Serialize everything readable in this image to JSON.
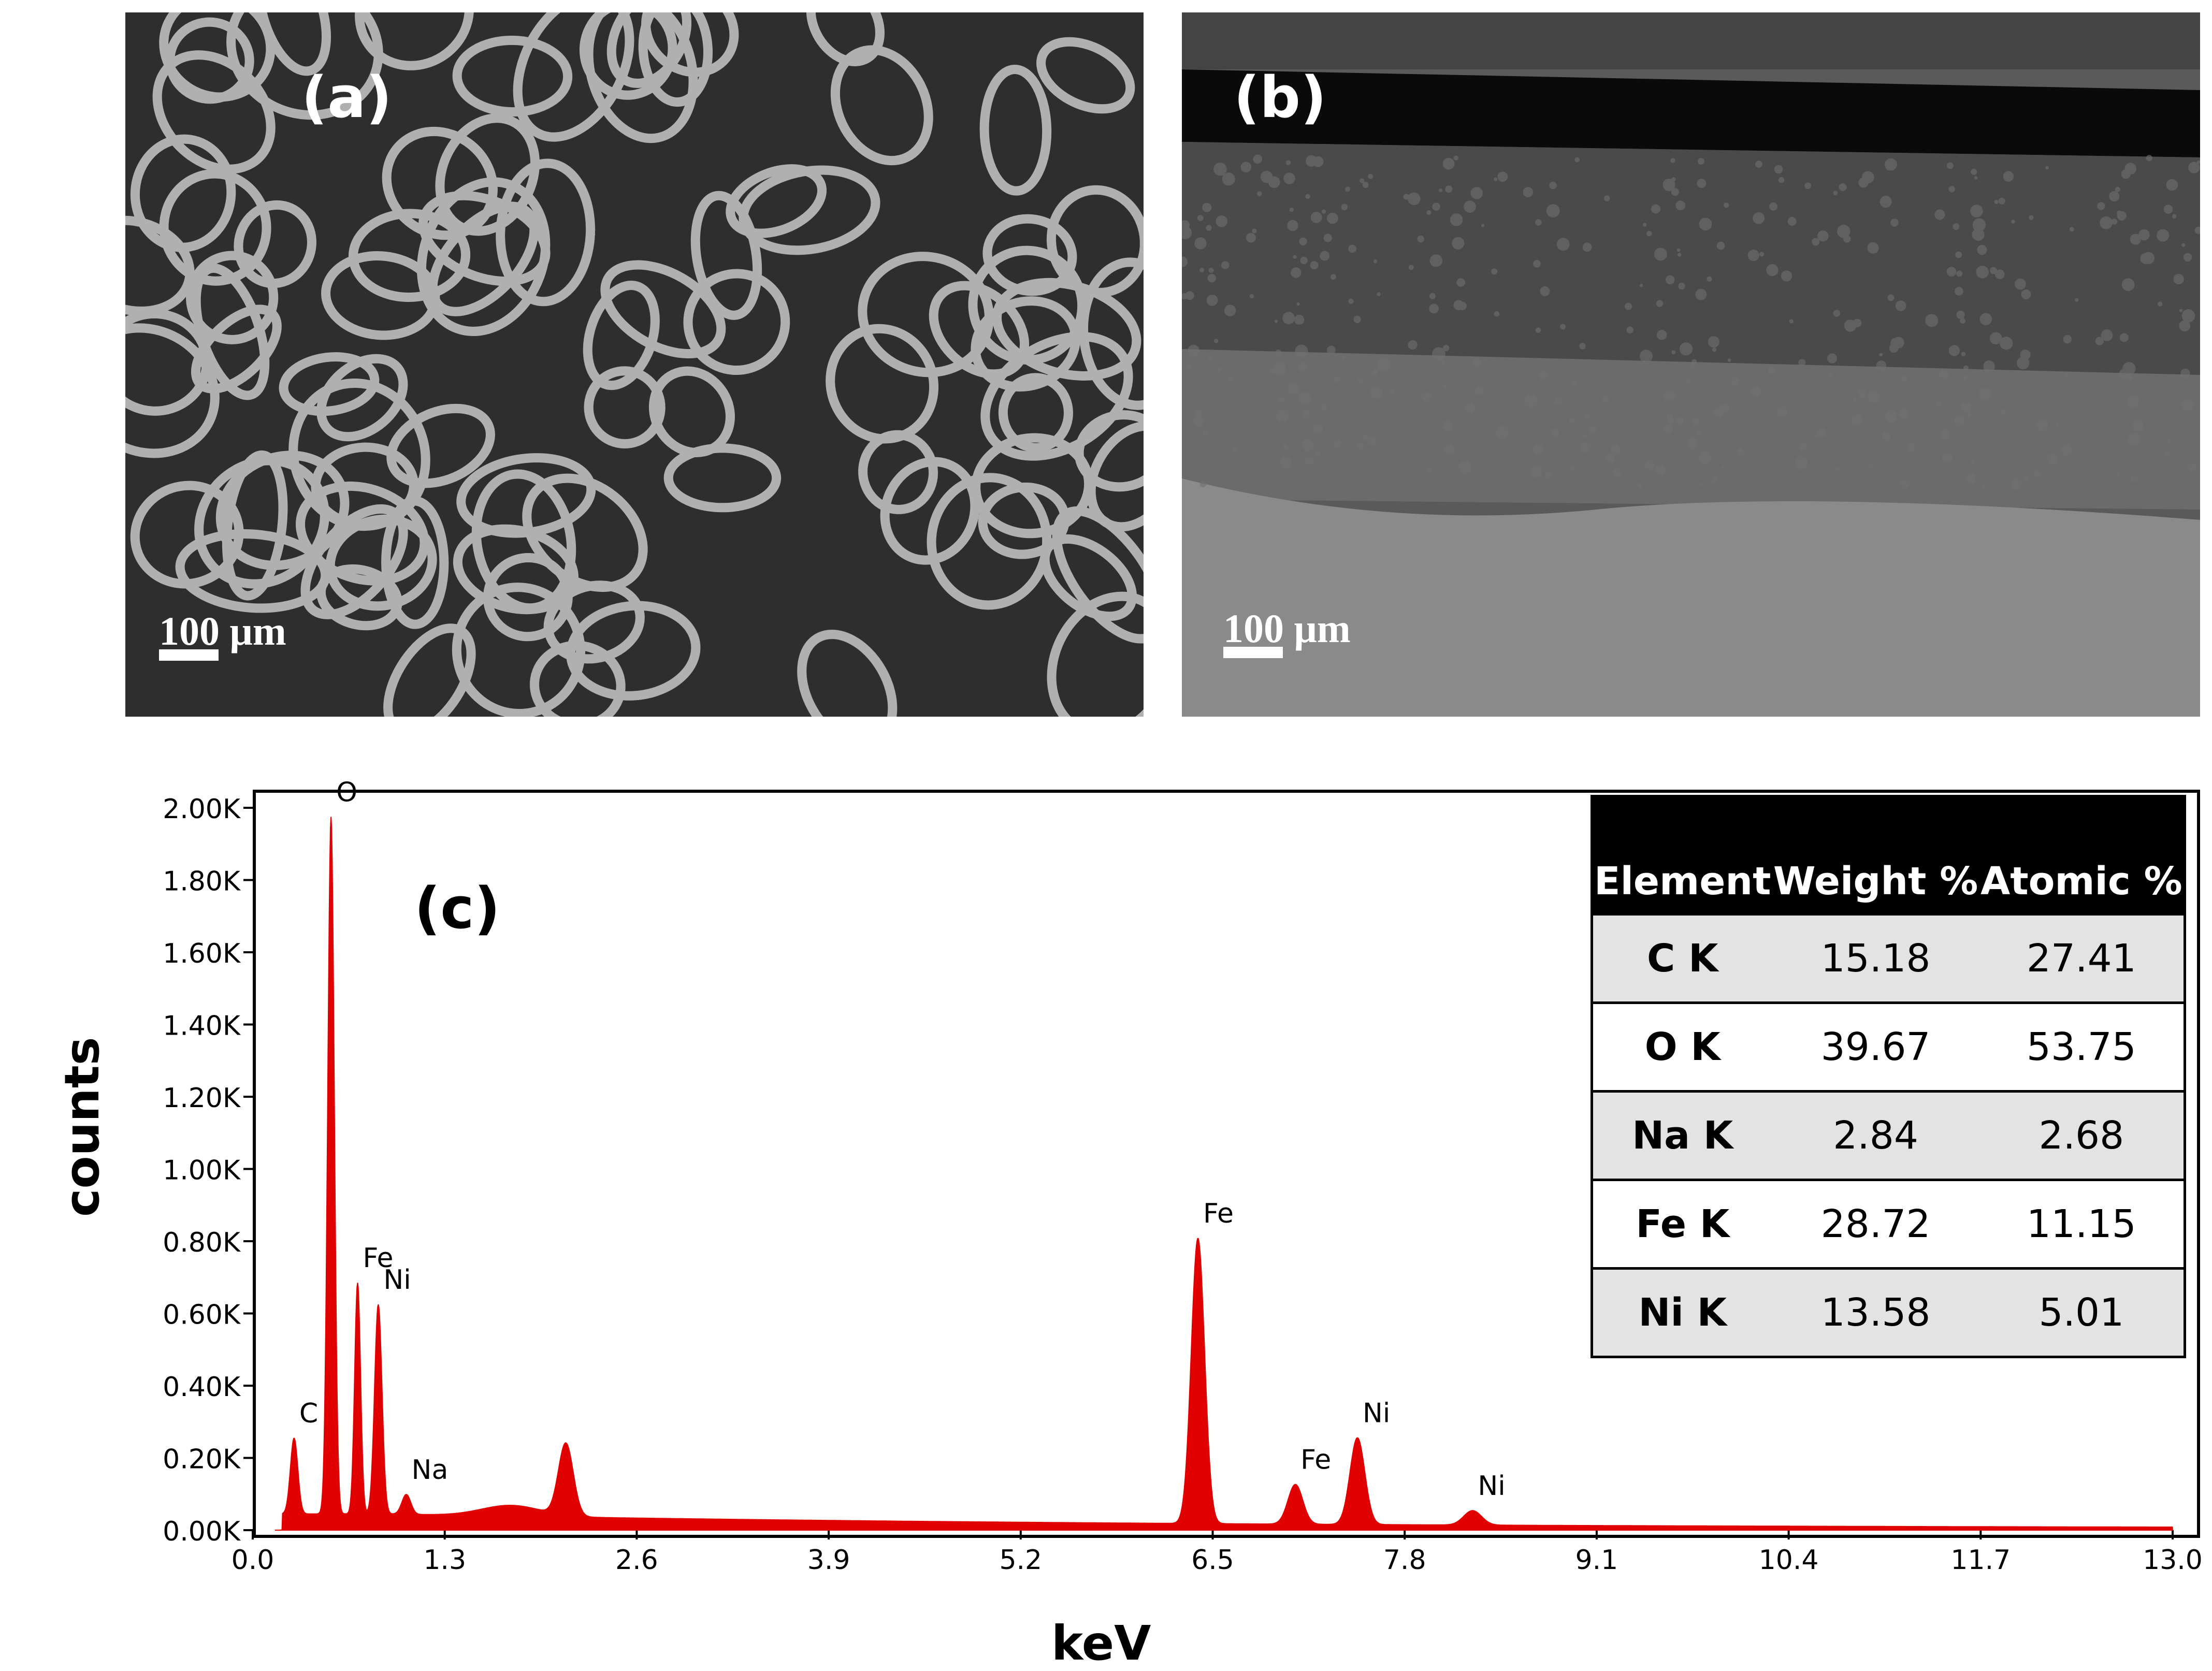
{
  "panels": {
    "a": {
      "label": "(a)",
      "scale_text": "100 μm"
    },
    "b": {
      "label": "(b)",
      "scale_text": "100 μm"
    }
  },
  "chart_label": "(c)",
  "table": {
    "headers": [
      "Element",
      "Weight %",
      "Atomic %"
    ],
    "rows": [
      {
        "element": "C K",
        "weight": "15.18",
        "atomic": "27.41"
      },
      {
        "element": "O K",
        "weight": "39.67",
        "atomic": "53.75"
      },
      {
        "element": "Na K",
        "weight": "2.84",
        "atomic": "2.68"
      },
      {
        "element": "Fe K",
        "weight": "28.72",
        "atomic": "11.15"
      },
      {
        "element": "Ni K",
        "weight": "13.58",
        "atomic": "5.01"
      }
    ]
  },
  "chart_data": {
    "type": "area",
    "xlabel": "keV",
    "ylabel": "counts",
    "xlim": [
      0.0,
      13.0
    ],
    "ylim": [
      0,
      2000
    ],
    "x_ticks": [
      "0.0",
      "1.3",
      "2.6",
      "3.9",
      "5.2",
      "6.5",
      "7.8",
      "9.1",
      "10.4",
      "11.7",
      "13.0"
    ],
    "y_ticks": [
      "0.00K",
      "0.20K",
      "0.40K",
      "0.60K",
      "0.80K",
      "1.00K",
      "1.20K",
      "1.40K",
      "1.60K",
      "1.80K",
      "2.00K"
    ],
    "series_color": "#e00000",
    "background_level": 40,
    "peaks": [
      {
        "x": 0.28,
        "y": 210,
        "label": "C",
        "width": 0.025
      },
      {
        "x": 0.53,
        "y": 1930,
        "label": "O",
        "width": 0.022
      },
      {
        "x": 0.71,
        "y": 640,
        "label": "Fe",
        "width": 0.02
      },
      {
        "x": 0.85,
        "y": 580,
        "label": "Ni",
        "width": 0.025
      },
      {
        "x": 1.04,
        "y": 55,
        "label": "Na",
        "width": 0.03
      },
      {
        "x": 1.75,
        "y": 30,
        "label": "",
        "width": 0.2
      },
      {
        "x": 2.12,
        "y": 200,
        "label": "",
        "width": 0.05
      },
      {
        "x": 6.4,
        "y": 790,
        "label": "Fe",
        "width": 0.045
      },
      {
        "x": 7.06,
        "y": 110,
        "label": "Fe",
        "width": 0.05
      },
      {
        "x": 7.48,
        "y": 240,
        "label": "Ni",
        "width": 0.05
      },
      {
        "x": 8.26,
        "y": 40,
        "label": "Ni",
        "width": 0.06
      }
    ]
  }
}
